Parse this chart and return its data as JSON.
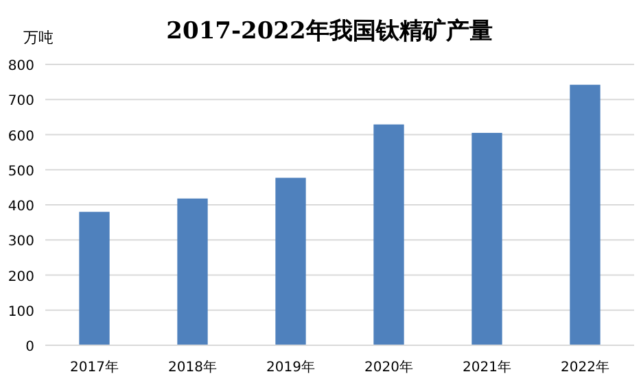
{
  "chart_data": {
    "type": "bar",
    "title": "2017-2022年我国钛精矿产量",
    "ylabel": "万吨",
    "categories": [
      "2017年",
      "2018年",
      "2019年",
      "2020年",
      "2021年",
      "2022年"
    ],
    "values": [
      380,
      418,
      477,
      629,
      605,
      742
    ],
    "color": "#4f81bd",
    "ylim": [
      0,
      800
    ],
    "yticks": [
      0,
      100,
      200,
      300,
      400,
      500,
      600,
      700,
      800
    ],
    "grid": "y"
  }
}
